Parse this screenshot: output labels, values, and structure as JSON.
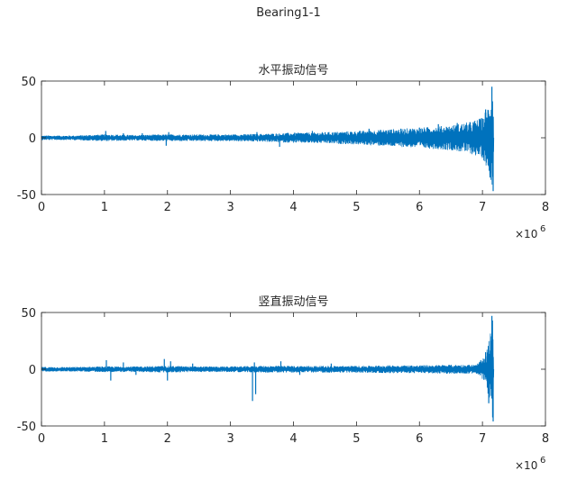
{
  "figure": {
    "title": "Bearing1-1"
  },
  "colors": {
    "signal": "#0072BD",
    "axis": "#262626",
    "background": "#ffffff"
  },
  "chart_data": [
    {
      "type": "line",
      "title": "水平振动信号",
      "xlabel": "",
      "ylabel": "",
      "xlim": [
        0,
        8
      ],
      "ylim": [
        -50,
        50
      ],
      "x_ticks": [
        "0",
        "1",
        "2",
        "3",
        "4",
        "5",
        "6",
        "7",
        "8"
      ],
      "y_ticks": [
        "50",
        "0",
        "-50"
      ],
      "x_exponent_label": "×10",
      "x_exponent": "6",
      "grid": false,
      "series": [
        {
          "x_unit_scale": 1000000,
          "envelope_points": [
            [
              0.0,
              2
            ],
            [
              0.5,
              2
            ],
            [
              1.0,
              3
            ],
            [
              1.5,
              2.5
            ],
            [
              2.0,
              3
            ],
            [
              2.5,
              3
            ],
            [
              3.0,
              3
            ],
            [
              3.5,
              3.5
            ],
            [
              4.0,
              4.5
            ],
            [
              4.5,
              5
            ],
            [
              5.0,
              6
            ],
            [
              5.5,
              7.5
            ],
            [
              6.0,
              9
            ],
            [
              6.5,
              11
            ],
            [
              6.8,
              14
            ],
            [
              7.0,
              18
            ],
            [
              7.1,
              30
            ],
            [
              7.17,
              45
            ],
            [
              7.18,
              0
            ]
          ],
          "spikes": [
            [
              1.02,
              6
            ],
            [
              1.3,
              4
            ],
            [
              1.6,
              4
            ],
            [
              1.98,
              -7
            ],
            [
              2.02,
              5
            ],
            [
              3.42,
              5
            ],
            [
              3.78,
              -8
            ],
            [
              4.3,
              6
            ],
            [
              5.2,
              8
            ],
            [
              6.0,
              9
            ],
            [
              6.3,
              12
            ],
            [
              6.6,
              13
            ],
            [
              7.05,
              25
            ],
            [
              7.12,
              -35
            ],
            [
              7.15,
              45
            ],
            [
              7.17,
              -47
            ]
          ]
        }
      ]
    },
    {
      "type": "line",
      "title": "竖直振动信号",
      "xlabel": "",
      "ylabel": "",
      "xlim": [
        0,
        8
      ],
      "ylim": [
        -50,
        50
      ],
      "x_ticks": [
        "0",
        "1",
        "2",
        "3",
        "4",
        "5",
        "6",
        "7",
        "8"
      ],
      "y_ticks": [
        "50",
        "0",
        "-50"
      ],
      "x_exponent_label": "×10",
      "x_exponent": "6",
      "grid": false,
      "series": [
        {
          "x_unit_scale": 1000000,
          "envelope_points": [
            [
              0.0,
              2
            ],
            [
              0.5,
              2
            ],
            [
              1.0,
              2.5
            ],
            [
              1.5,
              2.5
            ],
            [
              2.0,
              3
            ],
            [
              2.5,
              2.5
            ],
            [
              3.0,
              2.5
            ],
            [
              3.5,
              3
            ],
            [
              4.0,
              3
            ],
            [
              4.5,
              3
            ],
            [
              5.0,
              3
            ],
            [
              5.5,
              3.5
            ],
            [
              6.0,
              3.5
            ],
            [
              6.5,
              4
            ],
            [
              6.9,
              4
            ],
            [
              7.05,
              12
            ],
            [
              7.12,
              30
            ],
            [
              7.17,
              47
            ],
            [
              7.18,
              0
            ]
          ],
          "spikes": [
            [
              1.03,
              8
            ],
            [
              1.1,
              -10
            ],
            [
              1.3,
              6
            ],
            [
              1.5,
              -5
            ],
            [
              1.95,
              9
            ],
            [
              2.0,
              -10
            ],
            [
              2.05,
              7
            ],
            [
              2.4,
              5
            ],
            [
              3.35,
              -28
            ],
            [
              3.4,
              -22
            ],
            [
              3.38,
              6
            ],
            [
              3.8,
              7
            ],
            [
              4.1,
              -5
            ],
            [
              4.6,
              5
            ],
            [
              7.05,
              15
            ],
            [
              7.1,
              -30
            ],
            [
              7.15,
              47
            ],
            [
              7.17,
              -46
            ]
          ]
        }
      ]
    }
  ]
}
